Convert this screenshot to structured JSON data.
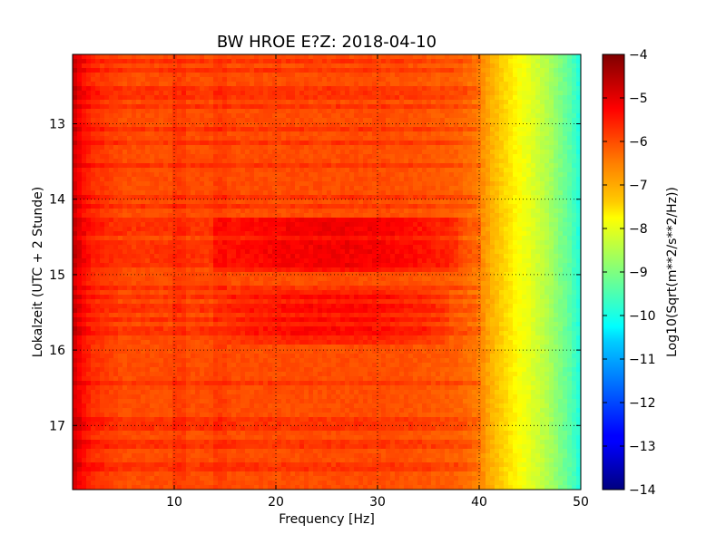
{
  "chart_data": {
    "type": "heatmap",
    "title": "BW HROE E?Z: 2018-04-10",
    "xlabel": "Frequency [Hz]",
    "ylabel": "Lokalzeit (UTC + 2 Stunde)",
    "xlim": [
      0,
      50
    ],
    "ylim": [
      17.85,
      12.08
    ],
    "y_axis_inverted": true,
    "x_ticks": [
      10,
      20,
      30,
      40,
      50
    ],
    "y_ticks": [
      13,
      14,
      15,
      16,
      17
    ],
    "grid": true,
    "grid_style": "dotted",
    "colorbar": {
      "label": "Log10(Sqrt(m**2/s**2/Hz))",
      "colormap": "jet",
      "range": [
        -14,
        -4
      ],
      "ticks": [
        -4,
        -5,
        -6,
        -7,
        -8,
        -9,
        -10,
        -11,
        -12,
        -13,
        -14
      ]
    },
    "frequency_profile": {
      "frequency_hz": [
        0,
        1,
        2,
        5,
        10,
        15,
        20,
        25,
        30,
        35,
        38,
        40,
        41,
        42,
        43,
        44,
        45,
        46,
        47,
        48,
        49,
        50
      ],
      "log10_amplitude": [
        -4.8,
        -5.4,
        -5.7,
        -6.0,
        -6.0,
        -6.0,
        -6.0,
        -6.0,
        -6.0,
        -6.1,
        -6.2,
        -6.5,
        -6.9,
        -7.2,
        -7.5,
        -7.8,
        -8.0,
        -8.3,
        -8.6,
        -9.0,
        -9.4,
        -10.0
      ]
    },
    "elevated_bands": [
      {
        "time_start": 14.25,
        "time_end": 14.95,
        "freq_start": 14,
        "freq_end": 38,
        "delta_log10": 0.6
      },
      {
        "time_start": 15.2,
        "time_end": 15.9,
        "freq_start": 15,
        "freq_end": 37,
        "delta_log10": 0.45
      }
    ],
    "horizontal_streaks": [
      12.18,
      12.28,
      12.52,
      12.62,
      12.78,
      13.05,
      13.25,
      13.55,
      13.95,
      14.1,
      14.3,
      14.38,
      14.47,
      14.6,
      14.68,
      14.78,
      14.85,
      15.18,
      15.28,
      15.45,
      15.58,
      15.75,
      16.42,
      16.95,
      17.05,
      17.25,
      17.55
    ]
  }
}
